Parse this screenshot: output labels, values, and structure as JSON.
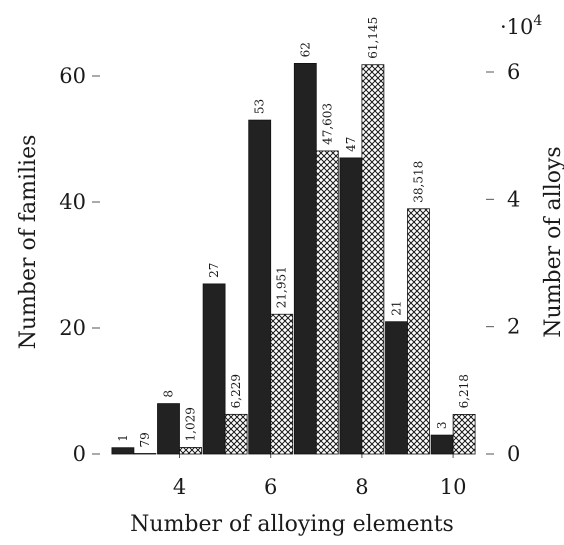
{
  "chart_data": {
    "type": "bar",
    "categories": [
      3,
      4,
      5,
      6,
      7,
      8,
      9,
      10
    ],
    "xlabel": "Number of alloying elements",
    "xticks": [
      "4",
      "6",
      "8",
      "10"
    ],
    "series": [
      {
        "axis": "left",
        "fill": "solid",
        "color": "#222222",
        "values": [
          1,
          8,
          27,
          53,
          62,
          47,
          21,
          3
        ],
        "value_labels": [
          "1",
          "8",
          "27",
          "53",
          "62",
          "47",
          "21",
          "3"
        ]
      },
      {
        "axis": "right",
        "fill": "crosshatch",
        "color": "#222222",
        "values": [
          79,
          1029,
          6229,
          21951,
          47603,
          61145,
          38518,
          6218
        ],
        "value_labels": [
          "79",
          "1,029",
          "6,229",
          "21,951",
          "47,603",
          "61,145",
          "38,518",
          "6,218"
        ]
      }
    ],
    "left_axis": {
      "label": "Number of families",
      "ylim": [
        0,
        60
      ],
      "ticks": [
        "0",
        "20",
        "40",
        "60"
      ]
    },
    "right_axis": {
      "label": "Number of alloys",
      "ylim": [
        0,
        60000
      ],
      "ticks": [
        "0",
        "2",
        "4",
        "6"
      ],
      "multiplier_base": "·10",
      "multiplier_exp": "4"
    },
    "grid": false,
    "legend": "none"
  }
}
